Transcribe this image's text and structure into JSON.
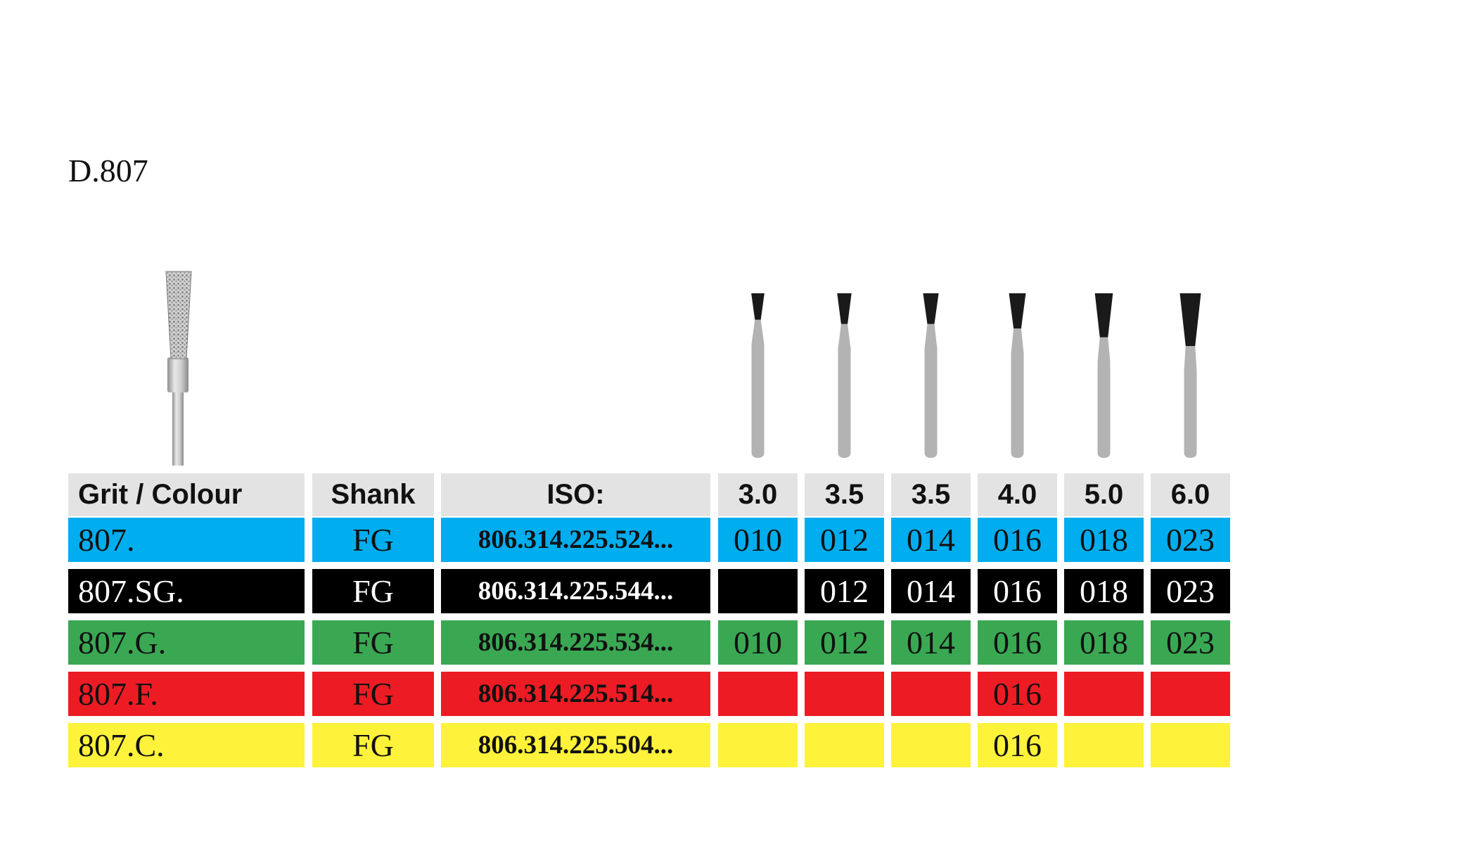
{
  "title": "D.807",
  "colors": {
    "header_bg": "#e3e3e3",
    "blue": "#00adef",
    "black": "#000000",
    "green": "#3aa853",
    "red": "#ed1c24",
    "yellow": "#fff23a",
    "bur_shaft": "#b3b3b3",
    "bur_head": "#1a1a1a"
  },
  "headers": {
    "grit": "Grit / Colour",
    "shank": "Shank",
    "iso": "ISO:",
    "lengths": [
      "3.0",
      "3.5",
      "3.5",
      "4.0",
      "5.0",
      "6.0"
    ]
  },
  "rows": [
    {
      "grit": "807.",
      "shank": "FG",
      "iso": "806.314.225.524...",
      "color": "blue",
      "text_color": "#111111",
      "sizes": [
        "010",
        "012",
        "014",
        "016",
        "018",
        "023"
      ]
    },
    {
      "grit": "807.SG.",
      "shank": "FG",
      "iso": "806.314.225.544...",
      "color": "black",
      "text_color": "#ffffff",
      "sizes": [
        "",
        "012",
        "014",
        "016",
        "018",
        "023"
      ]
    },
    {
      "grit": "807.G.",
      "shank": "FG",
      "iso": "806.314.225.534...",
      "color": "green",
      "text_color": "#111111",
      "sizes": [
        "010",
        "012",
        "014",
        "016",
        "018",
        "023"
      ]
    },
    {
      "grit": "807.F.",
      "shank": "FG",
      "iso": "806.314.225.514...",
      "color": "red",
      "text_color": "#111111",
      "sizes": [
        "",
        "",
        "",
        "016",
        "",
        ""
      ]
    },
    {
      "grit": "807.C.",
      "shank": "FG",
      "iso": "806.314.225.504...",
      "color": "yellow",
      "text_color": "#111111",
      "sizes": [
        "",
        "",
        "",
        "016",
        "",
        ""
      ]
    }
  ],
  "silhouettes": {
    "head_diameters": [
      0.1,
      0.12,
      0.14,
      0.16,
      0.18,
      0.23
    ],
    "head_lengths": [
      3.0,
      3.5,
      3.5,
      4.0,
      5.0,
      6.0
    ]
  }
}
